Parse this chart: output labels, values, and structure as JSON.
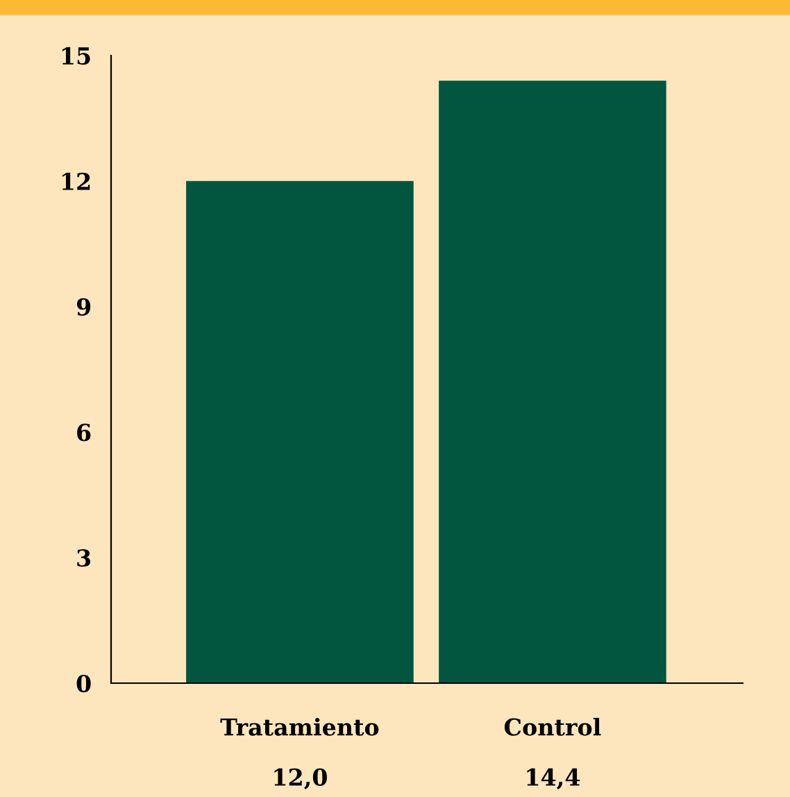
{
  "chart_data": {
    "type": "bar",
    "categories": [
      "Tratamiento",
      "Control"
    ],
    "values": [
      12.0,
      14.4
    ],
    "value_labels": [
      "12,0",
      "14,4"
    ],
    "color": "#02553f",
    "ylim": [
      0,
      15
    ],
    "yticks": [
      0,
      3,
      6,
      9,
      12,
      15
    ],
    "grid": false,
    "legend": false
  }
}
